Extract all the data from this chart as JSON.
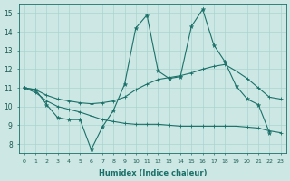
{
  "xlabel": "Humidex (Indice chaleur)",
  "background_color": "#cde8e4",
  "grid_color": "#a8d4ce",
  "line_color": "#1a7068",
  "xlim": [
    -0.5,
    23.5
  ],
  "ylim": [
    7.5,
    15.5
  ],
  "yticks": [
    8,
    9,
    10,
    11,
    12,
    13,
    14,
    15
  ],
  "xticks": [
    0,
    1,
    2,
    3,
    4,
    5,
    6,
    7,
    8,
    9,
    10,
    11,
    12,
    13,
    14,
    15,
    16,
    17,
    18,
    19,
    20,
    21,
    22,
    23
  ],
  "series1_x": [
    0,
    1,
    2,
    3,
    4,
    5,
    6,
    7,
    8,
    9,
    10,
    11,
    12,
    13,
    14,
    15,
    16,
    17,
    18,
    19,
    20,
    21,
    22
  ],
  "series1_y": [
    11.0,
    10.9,
    10.1,
    9.4,
    9.3,
    9.3,
    7.7,
    8.9,
    9.8,
    11.2,
    14.2,
    14.9,
    11.9,
    11.5,
    11.6,
    14.3,
    15.2,
    13.3,
    12.4,
    11.1,
    10.4,
    10.1,
    8.6
  ],
  "series2_x": [
    0,
    1,
    2,
    3,
    4,
    5,
    6,
    7,
    8,
    9,
    10,
    11,
    12,
    13,
    14,
    15,
    16,
    17,
    18,
    19,
    20,
    21,
    22,
    23
  ],
  "series2_y": [
    11.0,
    10.9,
    10.6,
    10.4,
    10.3,
    10.2,
    10.15,
    10.2,
    10.3,
    10.5,
    10.9,
    11.2,
    11.45,
    11.55,
    11.65,
    11.8,
    12.0,
    12.15,
    12.25,
    11.9,
    11.5,
    11.0,
    10.5,
    10.4
  ],
  "series3_x": [
    0,
    1,
    2,
    3,
    4,
    5,
    6,
    7,
    8,
    9,
    10,
    11,
    12,
    13,
    14,
    15,
    16,
    17,
    18,
    19,
    20,
    21,
    22,
    23
  ],
  "series3_y": [
    11.0,
    10.75,
    10.3,
    10.0,
    9.85,
    9.7,
    9.5,
    9.3,
    9.2,
    9.1,
    9.05,
    9.05,
    9.05,
    9.0,
    8.95,
    8.95,
    8.95,
    8.95,
    8.95,
    8.95,
    8.9,
    8.85,
    8.7,
    8.6
  ]
}
